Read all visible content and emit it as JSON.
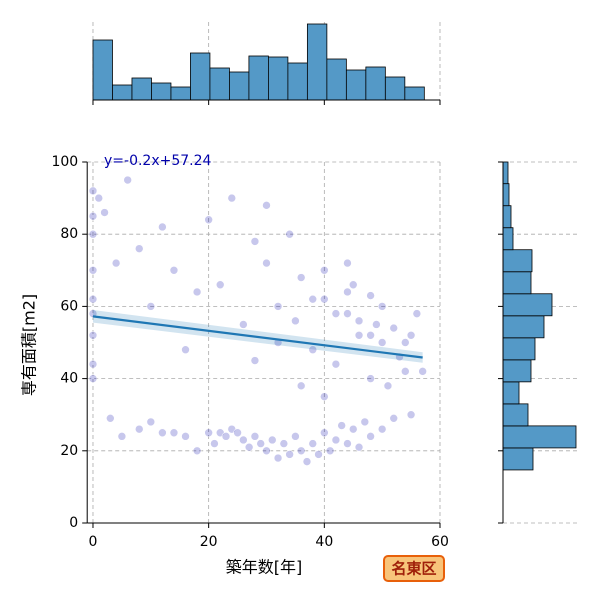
{
  "chart_data": {
    "type": "scatter",
    "x_label": "築年数[年]",
    "y_label": "専有面積[m2]",
    "annotation": "y=-0.2x+57.24",
    "badge": "名東区",
    "xlim": [
      -1,
      60
    ],
    "ylim": [
      0,
      100
    ],
    "xticks": [
      0,
      20,
      40,
      60
    ],
    "yticks": [
      0,
      20,
      40,
      60,
      80,
      100
    ],
    "grid": true,
    "series": [
      {
        "color": "#0000aa",
        "x": [
          0,
          0,
          0,
          0,
          0,
          0,
          0,
          0,
          0,
          1,
          2,
          4,
          6,
          8,
          10,
          12,
          14,
          16,
          18,
          20,
          22,
          24,
          26,
          28,
          30,
          32,
          34,
          36,
          38,
          40,
          42,
          44,
          46,
          48,
          50,
          52,
          54,
          56,
          57,
          30,
          3,
          5,
          8,
          10,
          12,
          14,
          16,
          18,
          20,
          21,
          22,
          23,
          24,
          25,
          26,
          27,
          28,
          29,
          30,
          31,
          32,
          33,
          34,
          35,
          36,
          37,
          38,
          39,
          40,
          41,
          42,
          43,
          44,
          45,
          46,
          47,
          48,
          50,
          52,
          55,
          28,
          32,
          35,
          38,
          40,
          42,
          44,
          45,
          46,
          48,
          49,
          50,
          51,
          53,
          54,
          55,
          48,
          44,
          40,
          36
        ],
        "values": [
          92,
          85,
          80,
          70,
          62,
          58,
          52,
          44,
          40,
          90,
          86,
          72,
          95,
          76,
          60,
          82,
          70,
          48,
          64,
          84,
          66,
          90,
          55,
          78,
          72,
          60,
          80,
          68,
          62,
          70,
          58,
          64,
          56,
          52,
          60,
          54,
          50,
          58,
          42,
          88,
          29,
          24,
          26,
          28,
          25,
          25,
          24,
          20,
          25,
          22,
          25,
          24,
          26,
          25,
          23,
          21,
          24,
          22,
          20,
          23,
          18,
          22,
          19,
          24,
          20,
          17,
          22,
          19,
          25,
          20,
          23,
          27,
          22,
          26,
          21,
          28,
          24,
          26,
          29,
          30,
          45,
          50,
          56,
          48,
          62,
          44,
          58,
          66,
          52,
          40,
          55,
          50,
          38,
          46,
          42,
          52,
          63,
          72,
          35,
          38
        ]
      }
    ],
    "regression": {
      "color": "#1f77b4",
      "x": [
        0,
        57
      ],
      "values": [
        57.24,
        45.84
      ],
      "lower": [
        55.5,
        44.4
      ],
      "upper": [
        59.0,
        47.3
      ]
    },
    "top_histogram": {
      "type": "histogram",
      "color": "#5499c7",
      "bins": [
        0,
        3.37,
        6.74,
        10.11,
        13.48,
        16.85,
        20.22,
        23.59,
        26.96,
        30.33,
        33.7,
        37.07,
        40.44,
        43.81,
        47.18,
        50.55,
        53.92,
        57.29
      ],
      "counts": [
        60,
        15,
        22,
        17,
        13,
        47,
        32,
        28,
        44,
        43,
        37,
        76,
        41,
        30,
        33,
        23,
        13
      ],
      "countlim": [
        0,
        78
      ]
    },
    "right_histogram": {
      "type": "histogram",
      "color": "#5499c7",
      "bins": [
        14.7,
        20.8,
        26.9,
        33,
        39.1,
        45.2,
        51.3,
        57.4,
        63.5,
        69.6,
        75.7,
        81.8,
        87.9,
        94,
        100.1
      ],
      "counts": [
        30,
        73,
        25,
        16,
        28,
        32,
        41,
        49,
        28,
        29,
        10,
        8,
        6,
        5
      ],
      "countlim": [
        0,
        75
      ]
    }
  }
}
